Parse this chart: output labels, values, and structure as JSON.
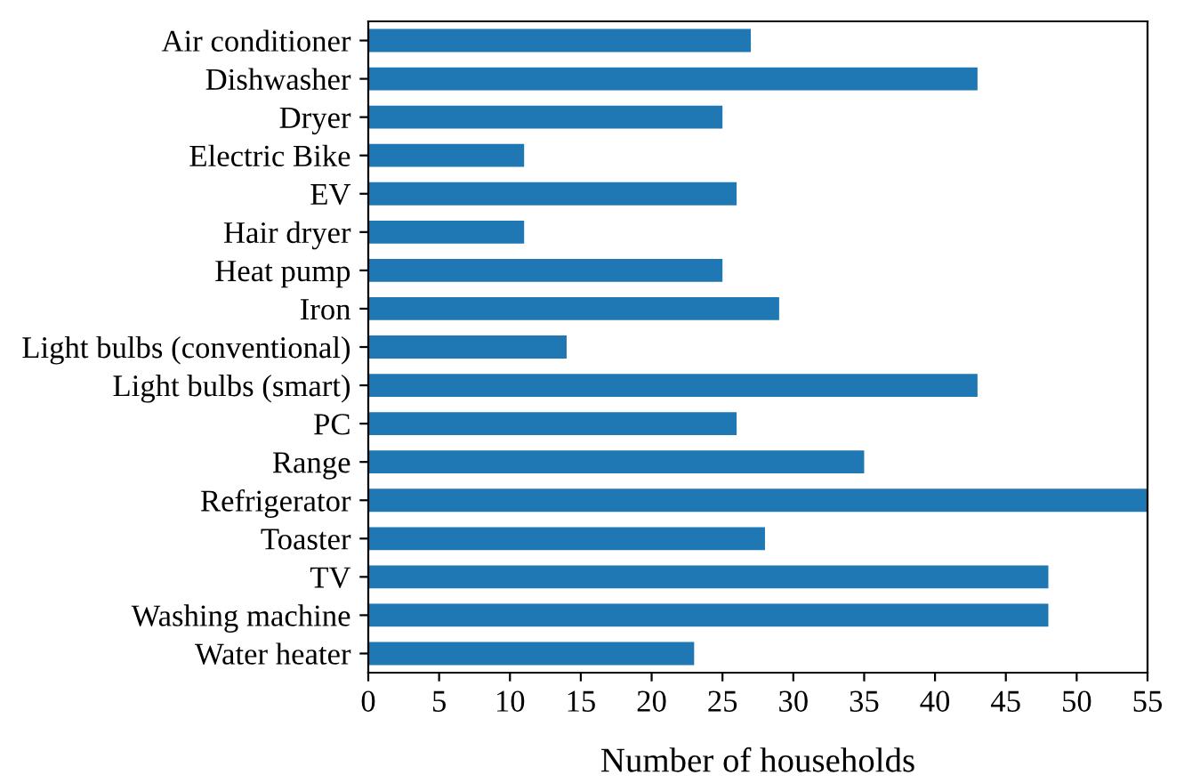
{
  "chart_data": {
    "type": "bar",
    "orientation": "horizontal",
    "xlabel": "Number of households",
    "categories": [
      "Air conditioner",
      "Dishwasher",
      "Dryer",
      "Electric Bike",
      "EV",
      "Hair dryer",
      "Heat pump",
      "Iron",
      "Light bulbs (conventional)",
      "Light bulbs (smart)",
      "PC",
      "Range",
      "Refrigerator",
      "Toaster",
      "TV",
      "Washing machine",
      "Water heater"
    ],
    "values": [
      27,
      43,
      25,
      11,
      26,
      11,
      25,
      29,
      14,
      43,
      26,
      35,
      55,
      28,
      48,
      48,
      23
    ],
    "color": "#1f77b4",
    "xlim": [
      0,
      55
    ],
    "xticks": [
      0,
      5,
      10,
      15,
      20,
      25,
      30,
      35,
      40,
      45,
      50,
      55
    ],
    "grid": false,
    "legend": false
  }
}
